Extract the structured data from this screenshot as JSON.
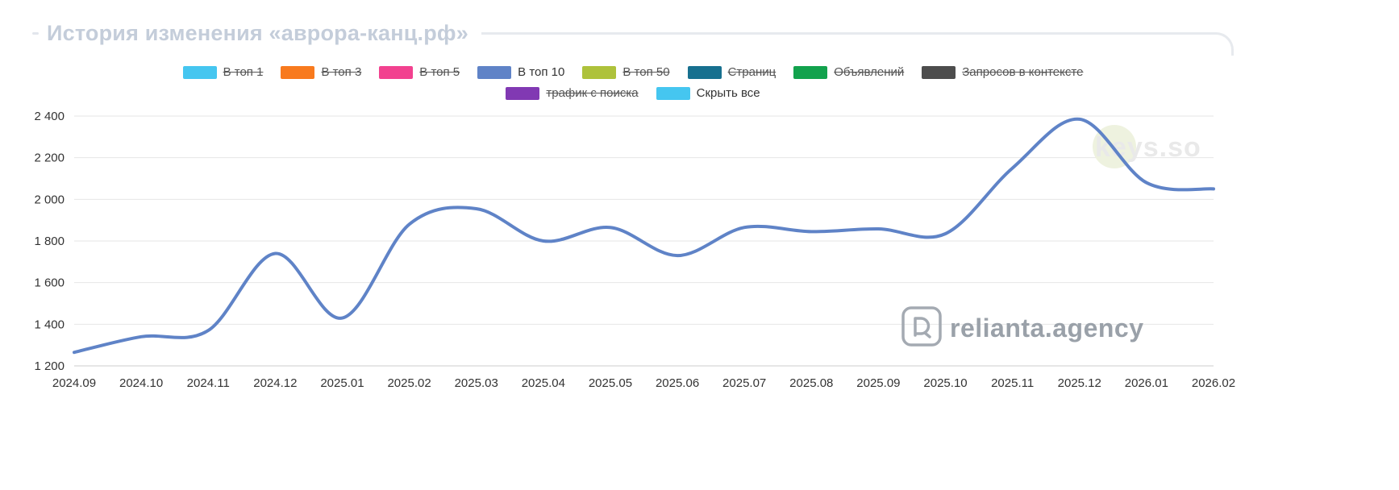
{
  "title": "История изменения «аврора-канц.рф»",
  "watermark": {
    "text": "keys.so"
  },
  "brand": {
    "text": "relianta.agency"
  },
  "legend": {
    "row1": [
      {
        "label": "В топ 1",
        "color": "#45C6F0",
        "disabled": true
      },
      {
        "label": "В топ 3",
        "color": "#F87A1E",
        "disabled": true
      },
      {
        "label": "В топ 5",
        "color": "#F2418F",
        "disabled": true
      },
      {
        "label": "В топ 10",
        "color": "#5F83C7",
        "disabled": false
      },
      {
        "label": "В топ 50",
        "color": "#AEC23B",
        "disabled": true
      },
      {
        "label": "Страниц",
        "color": "#17708F",
        "disabled": true
      },
      {
        "label": "Объявлений",
        "color": "#12A24D",
        "disabled": true
      },
      {
        "label": "Запросов в контексте",
        "color": "#4D4D4D",
        "disabled": true
      }
    ],
    "row2": [
      {
        "label": "трафик с поиска",
        "color": "#8139B3",
        "disabled": true
      },
      {
        "label": "Скрыть все",
        "color": "#45C6F0",
        "disabled": false
      }
    ]
  },
  "chart_data": {
    "type": "line",
    "title": "История изменения «аврора-канц.рф»",
    "categories": [
      "2024.09",
      "2024.10",
      "2024.11",
      "2024.12",
      "2025.01",
      "2025.02",
      "2025.03",
      "2025.04",
      "2025.05",
      "2025.06",
      "2025.07",
      "2025.08",
      "2025.09",
      "2025.10",
      "2025.11",
      "2025.12",
      "2026.01",
      "2026.02"
    ],
    "series": [
      {
        "name": "В топ 10",
        "color": "#5F83C7",
        "values": [
          1265,
          1340,
          1370,
          1740,
          1430,
          1880,
          1955,
          1800,
          1865,
          1730,
          1865,
          1845,
          1858,
          1835,
          2150,
          2385,
          2080,
          2050
        ]
      }
    ],
    "ylim": [
      1200,
      2400
    ],
    "yticks": [
      1200,
      1400,
      1600,
      1800,
      2000,
      2200,
      2400
    ],
    "ytick_labels": [
      "1 200",
      "1 400",
      "1 600",
      "1 800",
      "2 000",
      "2 200",
      "2 400"
    ],
    "grid": "horizontal-only",
    "legend_position": "top",
    "line_style": "smooth-spline"
  }
}
